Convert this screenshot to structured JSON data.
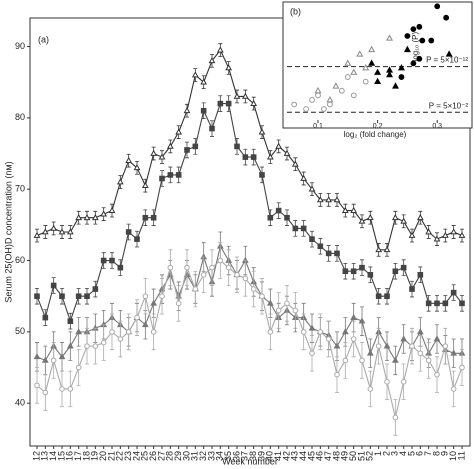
{
  "chart_data": [
    {
      "type": "line",
      "panel_label": "(a)",
      "y_label": "Serum 25(OH)D concentration (nм)",
      "x_label": "Week number",
      "categories": [
        "12",
        "13",
        "14",
        "15",
        "16",
        "17",
        "18",
        "19",
        "20",
        "21",
        "22",
        "23",
        "24",
        "25",
        "26",
        "27",
        "28",
        "29",
        "30",
        "31",
        "32",
        "33",
        "34",
        "35",
        "36",
        "37",
        "38",
        "39",
        "40",
        "41",
        "42",
        "43",
        "44",
        "45",
        "46",
        "47",
        "48",
        "49",
        "50",
        "51",
        "52",
        "1",
        "2",
        "3",
        "4",
        "5",
        "6",
        "7",
        "8",
        "9",
        "10",
        "11"
      ],
      "ylim": [
        34,
        94
      ],
      "yticks": [
        40,
        50,
        60,
        70,
        80,
        90
      ],
      "series": [
        {
          "color": "#333333",
          "marker": "triangle",
          "filled": false,
          "error": 0.9,
          "values": [
            63.5,
            64,
            64.5,
            64,
            64,
            66,
            66,
            66,
            66.5,
            67,
            71,
            74,
            73,
            70.5,
            75,
            74.5,
            76,
            78,
            81,
            86,
            85,
            88,
            89.5,
            87,
            83,
            83,
            82,
            78,
            74.5,
            76,
            75,
            73.5,
            71.5,
            70,
            68.5,
            68.5,
            68.5,
            67,
            67,
            65.5,
            66,
            61.5,
            61.5,
            66,
            65.5,
            63.5,
            66,
            64,
            63,
            63.5,
            64,
            63.5
          ]
        },
        {
          "color": "#444444",
          "marker": "square",
          "filled": true,
          "error": 1.1,
          "values": [
            55,
            52,
            56.5,
            55,
            51.5,
            55,
            55,
            56,
            60,
            60,
            59,
            64,
            63,
            66,
            66,
            71.5,
            72,
            72,
            75.5,
            76,
            81,
            78.5,
            82,
            82,
            76,
            74.5,
            74.5,
            72,
            66,
            67,
            66,
            64.5,
            64.5,
            63,
            62,
            61,
            61,
            58.5,
            58.5,
            59,
            58,
            55,
            55,
            58.5,
            59,
            56,
            58,
            54,
            54,
            54,
            55.5,
            54
          ]
        },
        {
          "color": "#777777",
          "marker": "triangle",
          "filled": true,
          "error": 2,
          "values": [
            46.5,
            46,
            48,
            46.5,
            48,
            50,
            50,
            50.5,
            51,
            52,
            51,
            50,
            52,
            51,
            54,
            56,
            58,
            55,
            58,
            56,
            60.5,
            57,
            62,
            60,
            58,
            60,
            57,
            55,
            54,
            52,
            53,
            52,
            52,
            50.5,
            50,
            49.5,
            48,
            50,
            52,
            51.5,
            47,
            50,
            48,
            46,
            49,
            48,
            50,
            47,
            49,
            47.5,
            47,
            47
          ]
        },
        {
          "color": "#aaaaaa",
          "marker": "circle",
          "filled": false,
          "error": 2.5,
          "values": [
            42.5,
            41.5,
            46,
            42,
            42,
            45,
            48,
            48,
            48.5,
            50,
            49,
            50,
            52,
            55,
            50,
            55,
            59,
            54,
            59,
            56,
            58,
            59,
            60,
            59,
            58,
            57.5,
            56,
            55,
            50,
            53,
            54,
            53,
            50,
            47,
            50,
            49,
            44,
            46,
            49,
            46,
            42,
            48,
            43,
            38,
            43,
            48,
            47,
            46,
            44,
            48,
            42,
            45
          ]
        }
      ]
    },
    {
      "type": "scatter",
      "panel_label": "(b)",
      "y_label": "-log₁₀ (P)",
      "x_label": "log₂ (fold change)",
      "xlim": [
        0.048,
        0.355
      ],
      "xticks": [
        0.1,
        0.2,
        0.3
      ],
      "ylim": [
        -0.4,
        25
      ],
      "hlines": [
        {
          "value": 11.3,
          "label": "P = 5×10⁻¹²"
        },
        {
          "value": 1.3,
          "label": "P = 5×10⁻²"
        }
      ],
      "series": [
        {
          "color": "#000000",
          "marker": "circle",
          "filled": true,
          "x": [
            0.26,
            0.27,
            0.25,
            0.275,
            0.29,
            0.27,
            0.24,
            0.26,
            0.3,
            0.315
          ],
          "values": [
            19.5,
            20,
            18,
            17,
            17,
            13,
            9,
            12,
            24.5,
            22
          ]
        },
        {
          "color": "#000000",
          "marker": "triangle",
          "filled": true,
          "x": [
            0.32,
            0.25,
            0.2,
            0.22,
            0.2,
            0.24,
            0.19,
            0.22,
            0.23
          ],
          "values": [
            14,
            15,
            10,
            10.5,
            8,
            11,
            12,
            9.5,
            7
          ]
        },
        {
          "color": "#888888",
          "marker": "triangle",
          "filled": false,
          "x": [
            0.22,
            0.19,
            0.17,
            0.15,
            0.16,
            0.18,
            0.13,
            0.1,
            0.12
          ],
          "values": [
            17.5,
            15,
            14,
            12,
            10,
            11,
            7,
            6,
            4
          ]
        },
        {
          "color": "#999999",
          "marker": "circle",
          "filled": false,
          "x": [
            0.06,
            0.08,
            0.1,
            0.12,
            0.14,
            0.16,
            0.11,
            0.09,
            0.18,
            0.15
          ],
          "values": [
            3,
            2,
            5,
            3,
            6,
            5,
            2,
            4,
            8,
            9
          ]
        }
      ]
    }
  ]
}
